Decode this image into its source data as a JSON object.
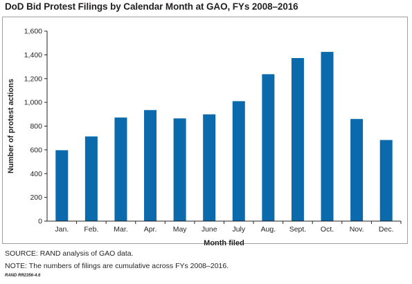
{
  "chart_data": {
    "type": "bar",
    "title": "DoD Bid Protest Filings by Calendar Month at GAO, FYs 2008–2016",
    "xlabel": "Month filed",
    "ylabel": "Number of protest actions",
    "categories": [
      "Jan.",
      "Feb.",
      "Mar.",
      "Apr.",
      "May",
      "June",
      "July",
      "Aug.",
      "Sept.",
      "Oct.",
      "Nov.",
      "Dec."
    ],
    "values": [
      597,
      713,
      872,
      935,
      865,
      899,
      1010,
      1237,
      1373,
      1425,
      860,
      683
    ],
    "ylim": [
      0,
      1600
    ],
    "yticks": [
      0,
      200,
      400,
      600,
      800,
      1000,
      1200,
      1400,
      1600
    ],
    "ytick_labels": [
      "0",
      "200",
      "400",
      "600",
      "800",
      "1,000",
      "1,200",
      "1,400",
      "1,600"
    ],
    "grid": false,
    "legend": "none",
    "bar_color": "#0b6aab"
  },
  "footer": {
    "source": "SOURCE: RAND analysis of GAO data.",
    "note": "NOTE: The numbers of filings are cumulative across FYs 2008–2016.",
    "figure_id": "RAND RR2356-4.6"
  }
}
